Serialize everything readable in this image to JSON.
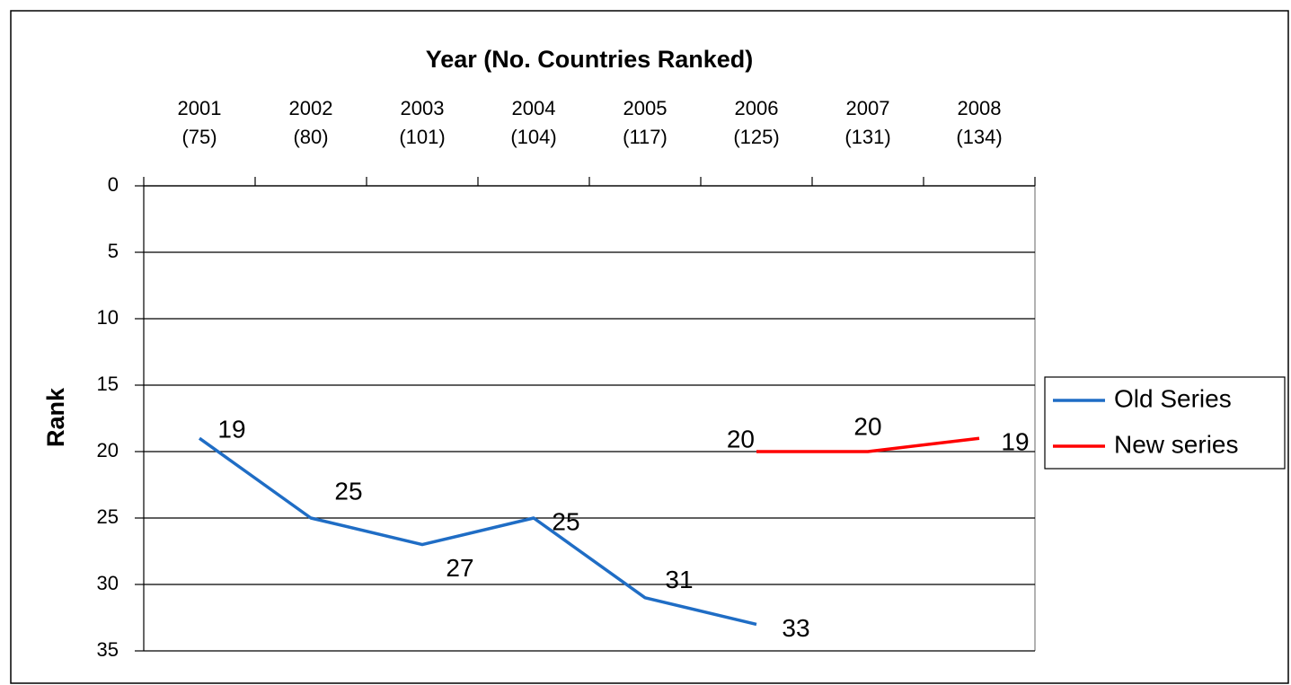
{
  "chart_data": {
    "type": "line",
    "xlabel": "Year (No. Countries Ranked)",
    "ylabel": "Rank",
    "categories": [
      "2001\n(75)",
      "2002\n(80)",
      "2003\n(101)",
      "2004\n(104)",
      "2005\n(117)",
      "2006\n(125)",
      "2007\n(131)",
      "2008\n(134)"
    ],
    "series": [
      {
        "name": "Old Series",
        "color": "#1f6dc5",
        "values": [
          19,
          25,
          27,
          25,
          31,
          33,
          null,
          null
        ]
      },
      {
        "name": "New series",
        "color": "#ff0000",
        "values": [
          null,
          null,
          null,
          null,
          null,
          20,
          20,
          19
        ]
      }
    ],
    "ylim": [
      0,
      35
    ],
    "yticks": [
      0,
      5,
      10,
      15,
      20,
      25,
      30,
      35
    ],
    "y_inverted": true,
    "xaxis_position": "top",
    "grid": true,
    "legend": "right",
    "data_labels": true
  }
}
